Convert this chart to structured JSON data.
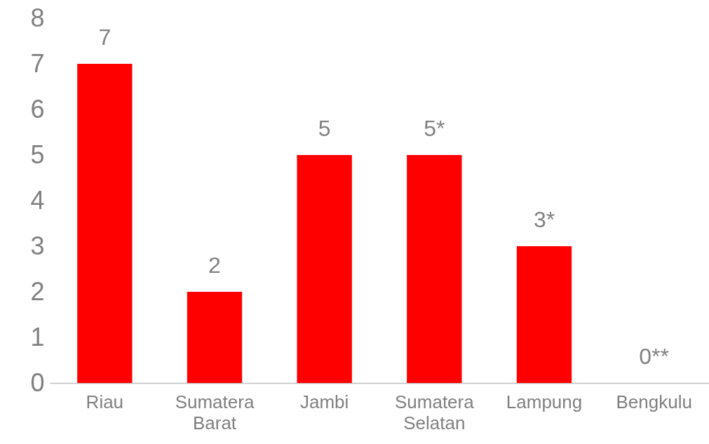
{
  "chart_data": {
    "type": "bar",
    "categories": [
      "Riau",
      "Sumatera Barat",
      "Jambi",
      "Sumatera Selatan",
      "Lampung",
      "Bengkulu"
    ],
    "values": [
      7,
      2,
      5,
      5,
      3,
      0
    ],
    "value_labels": [
      "7",
      "2",
      "5",
      "5*",
      "3*",
      "0**"
    ],
    "color": "#ff0000",
    "ylim": [
      0,
      8
    ],
    "yticks": [
      0,
      1,
      2,
      3,
      4,
      5,
      6,
      7,
      8
    ],
    "grid": false
  }
}
